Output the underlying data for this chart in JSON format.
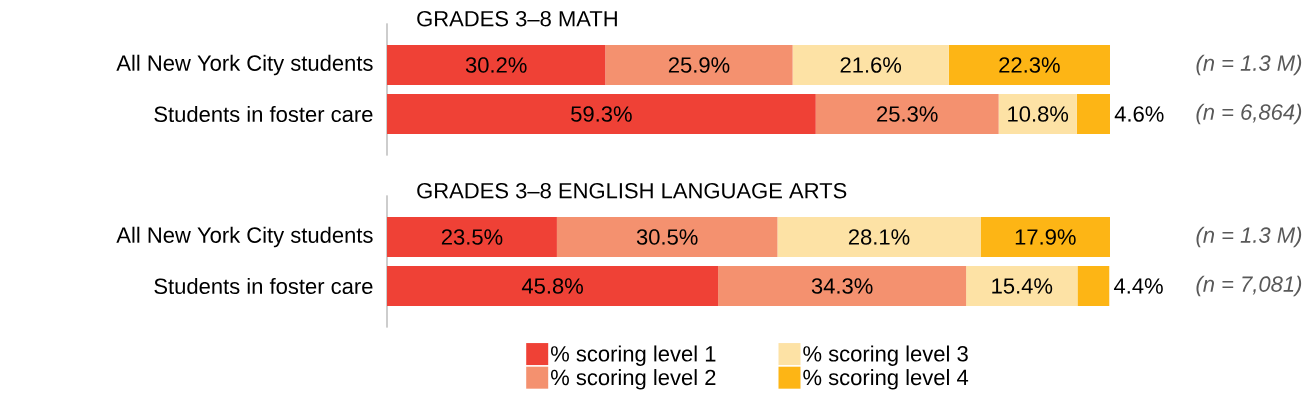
{
  "chart_data": [
    {
      "type": "bar",
      "orientation": "horizontal",
      "stacked": true,
      "title": "GRADES 3–8 MATH",
      "tick_labels": "y",
      "xlim": [
        0,
        100
      ],
      "categories": [
        "All New York City students",
        "Students in foster care"
      ],
      "series": [
        {
          "color": "#ef4136",
          "values": [
            30.2,
            59.3
          ],
          "value_labels": [
            "30.2%",
            "59.3%"
          ]
        },
        {
          "color": "#f4916f",
          "values": [
            25.9,
            25.3
          ],
          "value_labels": [
            "25.9%",
            "25.3%"
          ]
        },
        {
          "color": "#fde2a5",
          "values": [
            21.6,
            10.8
          ],
          "value_labels": [
            "21.6%",
            "10.8%"
          ]
        },
        {
          "color": "#fdb515",
          "values": [
            22.3,
            4.6
          ],
          "value_labels": [
            "22.3%",
            "4.6%"
          ]
        }
      ],
      "annotations": [
        "(n = 1.3 M)",
        "(n = 6,864)"
      ]
    },
    {
      "type": "bar",
      "orientation": "horizontal",
      "stacked": true,
      "title": "GRADES 3–8 ENGLISH LANGUAGE ARTS",
      "tick_labels": "y",
      "xlim": [
        0,
        100
      ],
      "legend": "bottom",
      "categories": [
        "All New York City students",
        "Students in foster care"
      ],
      "series": [
        {
          "name": "% scoring level 1",
          "color": "#ef4136",
          "values": [
            23.5,
            45.8
          ],
          "value_labels": [
            "23.5%",
            "45.8%"
          ]
        },
        {
          "name": "% scoring level 2",
          "color": "#f4916f",
          "values": [
            30.5,
            34.3
          ],
          "value_labels": [
            "30.5%",
            "34.3%"
          ]
        },
        {
          "name": "% scoring level 3",
          "color": "#fde2a5",
          "values": [
            28.1,
            15.4
          ],
          "value_labels": [
            "28.1%",
            "15.4%"
          ]
        },
        {
          "name": "% scoring level 4",
          "color": "#fdb515",
          "values": [
            17.9,
            4.4
          ],
          "value_labels": [
            "17.9%",
            "4.4%"
          ]
        }
      ],
      "annotations": [
        "(n = 1.3 M)",
        "(n = 7,081)"
      ]
    }
  ]
}
